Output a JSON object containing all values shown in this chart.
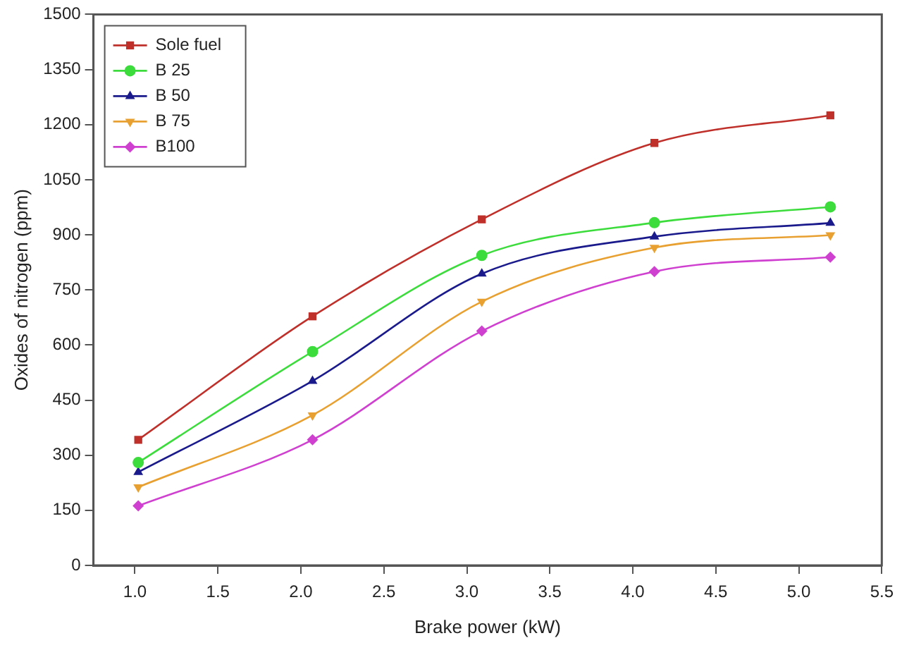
{
  "chart_data": {
    "type": "line",
    "xlabel": "Brake power (kW)",
    "ylabel": "Oxides of nitrogen (ppm)",
    "xlim": [
      0.75,
      5.5
    ],
    "xticks": [
      {
        "value": 1,
        "label": "1.0"
      },
      {
        "value": 1.5,
        "label": "1.5"
      },
      {
        "value": 2,
        "label": "2.0"
      },
      {
        "value": 2.5,
        "label": "2.5"
      },
      {
        "value": 3,
        "label": "3.0"
      },
      {
        "value": 3.5,
        "label": "3.5"
      },
      {
        "value": 4,
        "label": "4.0"
      },
      {
        "value": 4.5,
        "label": "4.5"
      },
      {
        "value": 5,
        "label": "5.0"
      },
      {
        "value": 5.5,
        "label": "5.5"
      }
    ],
    "ylim": [
      0,
      1500
    ],
    "yticks": [
      0,
      150,
      300,
      450,
      600,
      750,
      900,
      1050,
      1200,
      1350,
      1500
    ],
    "x": [
      1.02,
      2.07,
      3.09,
      4.13,
      5.19
    ],
    "grid": false,
    "legend": "top left",
    "series": [
      {
        "name": "Sole fuel",
        "color": "#c0302b",
        "marker": "square",
        "values": [
          342,
          678,
          942,
          1150,
          1225
        ]
      },
      {
        "name": "B 25",
        "color": "#3ddc3d",
        "marker": "circle",
        "values": [
          280,
          582,
          844,
          933,
          976
        ]
      },
      {
        "name": "B 50",
        "color": "#1a1a8c",
        "marker": "triangle",
        "values": [
          254,
          502,
          794,
          895,
          932
        ]
      },
      {
        "name": "B 75",
        "color": "#e8a030",
        "marker": "triangle-down",
        "values": [
          213,
          409,
          718,
          865,
          899
        ]
      },
      {
        "name": "B100",
        "color": "#d040d0",
        "marker": "diamond",
        "values": [
          162,
          342,
          638,
          800,
          839
        ]
      }
    ]
  }
}
